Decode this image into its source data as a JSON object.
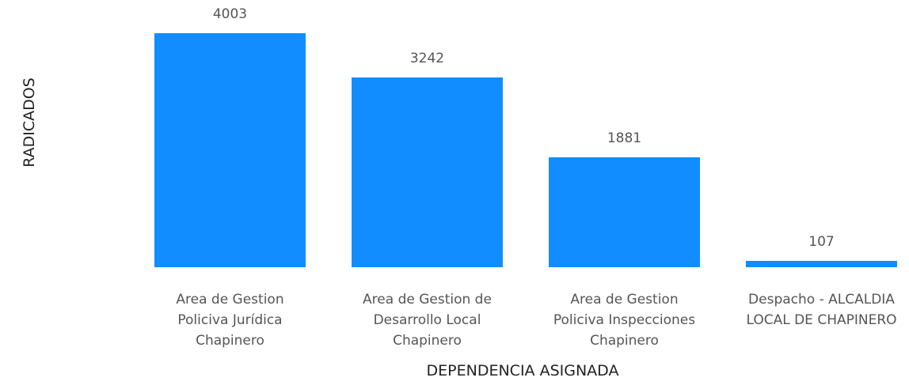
{
  "chart_data": {
    "type": "bar",
    "x_label": "DEPENDENCIA ASIGNADA",
    "y_label": "RADICADOS",
    "categories": [
      "Area de Gestion Policiva Jurídica Chapinero",
      "Area de Gestion de Desarrollo Local Chapinero",
      "Area de Gestion Policiva Inspecciones Chapinero",
      "Despacho - ALCALDIA LOCAL DE CHAPINERO"
    ],
    "values": [
      4003,
      3242,
      1881,
      107
    ],
    "color": "#118dff"
  }
}
